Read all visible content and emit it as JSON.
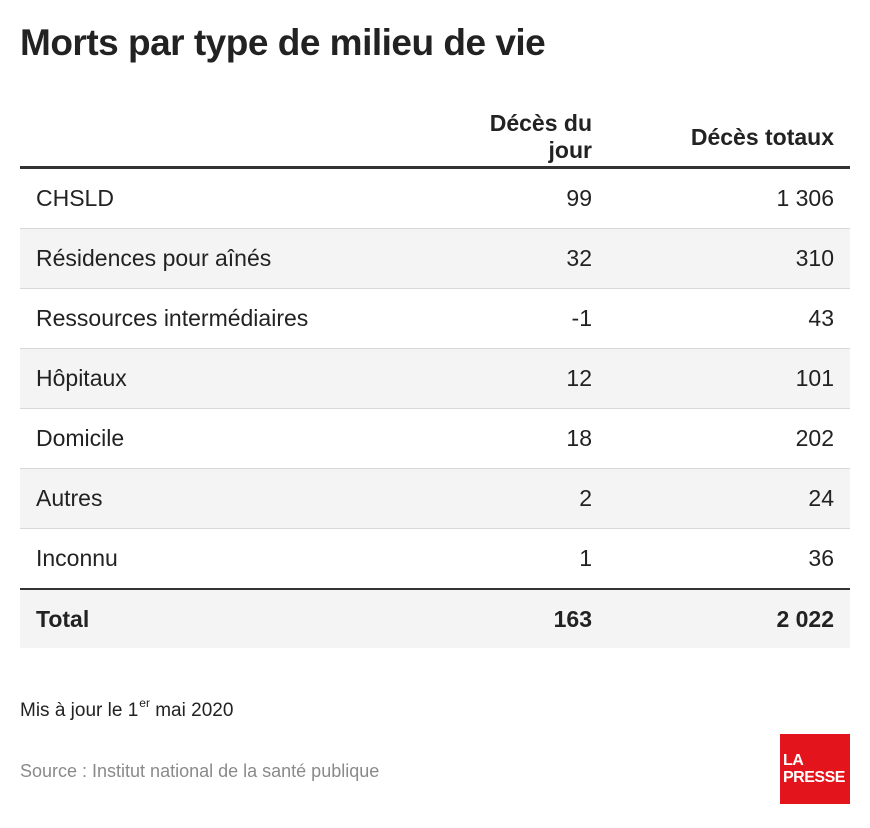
{
  "chart_data": {
    "type": "table",
    "title": "Morts par type de milieu de vie",
    "columns": [
      "",
      "Décès du jour",
      "Décès totaux"
    ],
    "rows": [
      {
        "category": "CHSLD",
        "day": "99",
        "total": "1 306"
      },
      {
        "category": "Résidences pour aînés",
        "day": "32",
        "total": "310"
      },
      {
        "category": "Ressources intermédiaires",
        "day": "-1",
        "total": "43"
      },
      {
        "category": "Hôpitaux",
        "day": "12",
        "total": "101"
      },
      {
        "category": "Domicile",
        "day": "18",
        "total": "202"
      },
      {
        "category": "Autres",
        "day": "2",
        "total": "24"
      },
      {
        "category": "Inconnu",
        "day": "1",
        "total": "36"
      }
    ],
    "total_row": {
      "category": "Total",
      "day": "163",
      "total": "2 022"
    }
  },
  "note": {
    "text": "Mis à jour le 1",
    "sup": "er",
    "tail": " mai 2020"
  },
  "source": "Source : Institut national de la santé publique",
  "logo": {
    "line1": "LA",
    "line2": "PRESSE",
    "color": "#e3141b"
  }
}
